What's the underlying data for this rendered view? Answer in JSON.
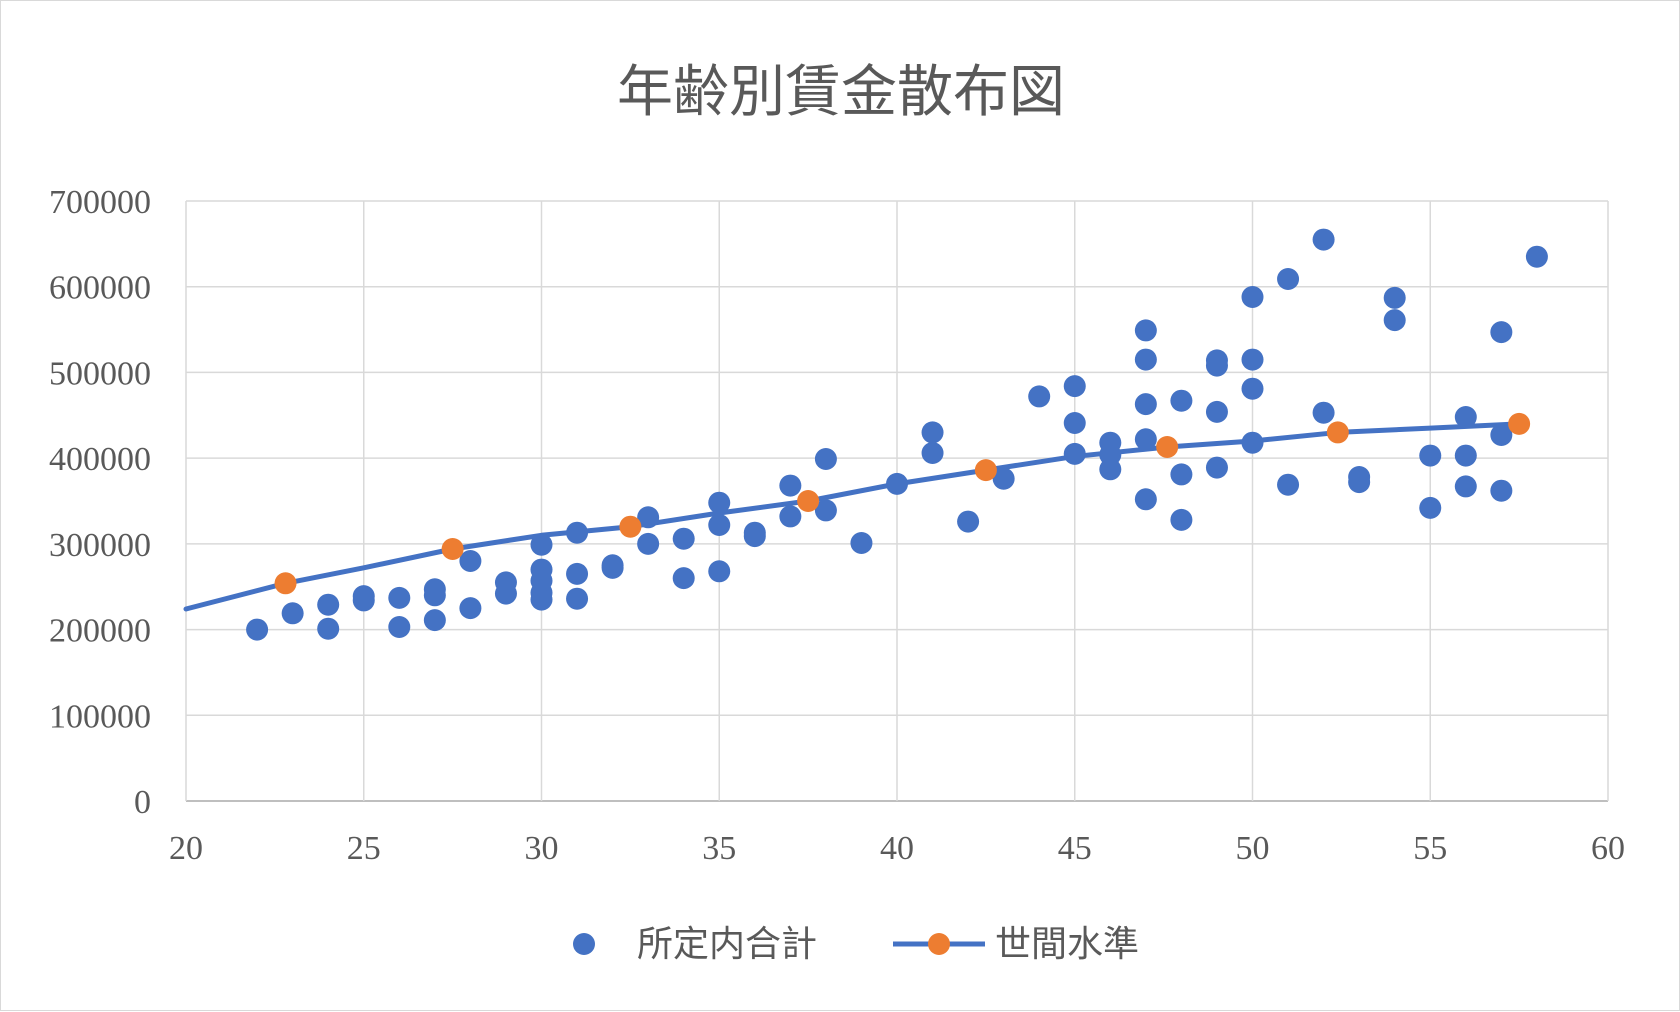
{
  "chart_data": {
    "type": "scatter",
    "title": "年齢別賃金散布図",
    "xlabel": "",
    "ylabel": "",
    "xlim": [
      20,
      60
    ],
    "ylim": [
      0,
      700000
    ],
    "x_ticks": [
      "20",
      "25",
      "30",
      "35",
      "40",
      "45",
      "50",
      "55",
      "60"
    ],
    "y_ticks": [
      "0",
      "100000",
      "200000",
      "300000",
      "400000",
      "500000",
      "600000",
      "700000"
    ],
    "grid": true,
    "legend_position": "bottom",
    "series": [
      {
        "name": "所定内合計",
        "type": "scatter",
        "color": "#4472C4",
        "points": [
          [
            22,
            200000
          ],
          [
            23,
            219000
          ],
          [
            24,
            201000
          ],
          [
            24,
            229000
          ],
          [
            25,
            234000
          ],
          [
            25,
            239000
          ],
          [
            26,
            203000
          ],
          [
            26,
            237000
          ],
          [
            27,
            211000
          ],
          [
            27,
            240000
          ],
          [
            27,
            247000
          ],
          [
            28,
            225000
          ],
          [
            28,
            280000
          ],
          [
            29,
            242000
          ],
          [
            29,
            255000
          ],
          [
            30,
            235000
          ],
          [
            30,
            243000
          ],
          [
            30,
            257000
          ],
          [
            30,
            270000
          ],
          [
            30,
            299000
          ],
          [
            31,
            236000
          ],
          [
            31,
            265000
          ],
          [
            31,
            313000
          ],
          [
            32,
            272000
          ],
          [
            32,
            275000
          ],
          [
            33,
            300000
          ],
          [
            33,
            331000
          ],
          [
            34,
            260000
          ],
          [
            34,
            306000
          ],
          [
            35,
            268000
          ],
          [
            35,
            322000
          ],
          [
            35,
            348000
          ],
          [
            36,
            309000
          ],
          [
            36,
            313000
          ],
          [
            37,
            332000
          ],
          [
            37,
            368000
          ],
          [
            38,
            339000
          ],
          [
            38,
            399000
          ],
          [
            39,
            301000
          ],
          [
            40,
            370000
          ],
          [
            41,
            406000
          ],
          [
            41,
            430000
          ],
          [
            42,
            326000
          ],
          [
            43,
            376000
          ],
          [
            44,
            472000
          ],
          [
            45,
            405000
          ],
          [
            45,
            441000
          ],
          [
            45,
            484000
          ],
          [
            46,
            387000
          ],
          [
            46,
            404000
          ],
          [
            46,
            418000
          ],
          [
            47,
            352000
          ],
          [
            47,
            422000
          ],
          [
            47,
            463000
          ],
          [
            47,
            515000
          ],
          [
            47,
            549000
          ],
          [
            48,
            328000
          ],
          [
            48,
            381000
          ],
          [
            48,
            467000
          ],
          [
            49,
            389000
          ],
          [
            49,
            454000
          ],
          [
            49,
            508000
          ],
          [
            49,
            514000
          ],
          [
            50,
            418000
          ],
          [
            50,
            481000
          ],
          [
            50,
            515000
          ],
          [
            50,
            588000
          ],
          [
            51,
            369000
          ],
          [
            51,
            609000
          ],
          [
            52,
            453000
          ],
          [
            52,
            655000
          ],
          [
            53,
            372000
          ],
          [
            53,
            378000
          ],
          [
            54,
            561000
          ],
          [
            54,
            587000
          ],
          [
            55,
            342000
          ],
          [
            55,
            403000
          ],
          [
            56,
            367000
          ],
          [
            56,
            403000
          ],
          [
            56,
            448000
          ],
          [
            57,
            362000
          ],
          [
            57,
            427000
          ],
          [
            57,
            547000
          ],
          [
            58,
            635000
          ]
        ]
      },
      {
        "name": "世間水準",
        "type": "line",
        "line_color": "#4472C4",
        "marker_color": "#ED7D31",
        "line_points": [
          [
            20,
            224000
          ],
          [
            22.8,
            254000
          ],
          [
            25,
            272000
          ],
          [
            27.5,
            294000
          ],
          [
            30,
            310000
          ],
          [
            32.5,
            320000
          ],
          [
            35,
            336000
          ],
          [
            37.5,
            350000
          ],
          [
            40,
            370000
          ],
          [
            42.5,
            386000
          ],
          [
            45,
            402000
          ],
          [
            47.6,
            413000
          ],
          [
            50,
            420000
          ],
          [
            52.4,
            430000
          ],
          [
            55,
            435000
          ],
          [
            57.5,
            440000
          ]
        ],
        "markers": [
          [
            22.8,
            254000
          ],
          [
            27.5,
            294000
          ],
          [
            32.5,
            320000
          ],
          [
            37.5,
            350000
          ],
          [
            42.5,
            386000
          ],
          [
            47.6,
            413000
          ],
          [
            52.4,
            430000
          ],
          [
            57.5,
            440000
          ]
        ]
      }
    ]
  }
}
